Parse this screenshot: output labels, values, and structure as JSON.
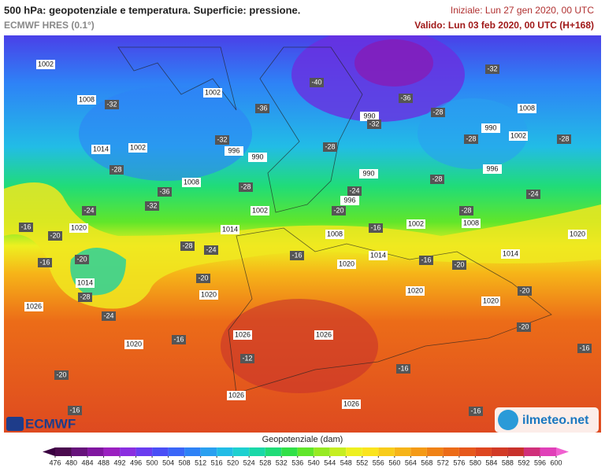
{
  "header": {
    "title": "500 hPa: geopotenziale e temperatura. Superficie: pressione.",
    "subtitle": "ECMWF HRES (0.1°)",
    "initial": "Iniziale: Lun 27 gen 2020, 00 UTC",
    "valid": "Valido: Lun 03 feb 2020, 00 UTC (H+168)"
  },
  "map": {
    "pressure_labels": [
      1002,
      1008,
      1002,
      1014,
      1002,
      996,
      990,
      1008,
      1002,
      1014,
      1020,
      1014,
      1020,
      1026,
      1020,
      1026,
      1026,
      1026,
      1026,
      1008,
      1002,
      1020,
      1014,
      1020,
      1020,
      1014,
      1020,
      1008,
      990,
      990,
      996,
      990,
      1002,
      996,
      1008
    ],
    "temperature_labels": [
      -32,
      -36,
      -40,
      -32,
      -28,
      -36,
      -32,
      -28,
      -24,
      -16,
      -20,
      -28,
      -24,
      -16,
      -20,
      -28,
      -24,
      -20,
      -16,
      -20,
      -16,
      -12,
      -16,
      -16,
      -20,
      -24,
      -28,
      -32,
      -36,
      -32,
      -28,
      -28,
      -28,
      -28,
      -24,
      -20,
      -16,
      -20,
      -16,
      -16,
      -20,
      -16,
      -28
    ]
  },
  "legend": {
    "label": "Geopotenziale (dam)",
    "ticks": [
      476,
      480,
      484,
      488,
      492,
      496,
      500,
      504,
      508,
      512,
      516,
      520,
      524,
      528,
      532,
      536,
      540,
      544,
      548,
      552,
      556,
      560,
      564,
      568,
      572,
      576,
      580,
      584,
      588,
      592,
      596,
      600
    ],
    "colors": [
      "#4a0a4e",
      "#66127a",
      "#8016a0",
      "#9a20c0",
      "#8a2ee0",
      "#6a3cf0",
      "#4a4ef6",
      "#3a66f8",
      "#2e82f6",
      "#2aa0f0",
      "#22bce6",
      "#1ed0d0",
      "#1ad8a8",
      "#20dc78",
      "#30e048",
      "#60e62a",
      "#96ea22",
      "#c6ee20",
      "#eef020",
      "#fae41e",
      "#f8cc1a",
      "#f6b418",
      "#f49a16",
      "#f08216",
      "#ec6c18",
      "#e6581c",
      "#de4620",
      "#d23a26",
      "#c8322c",
      "#d0307a",
      "#e040b8"
    ]
  },
  "logos": {
    "left": "ECMWF",
    "right": "ilmeteo.net"
  }
}
